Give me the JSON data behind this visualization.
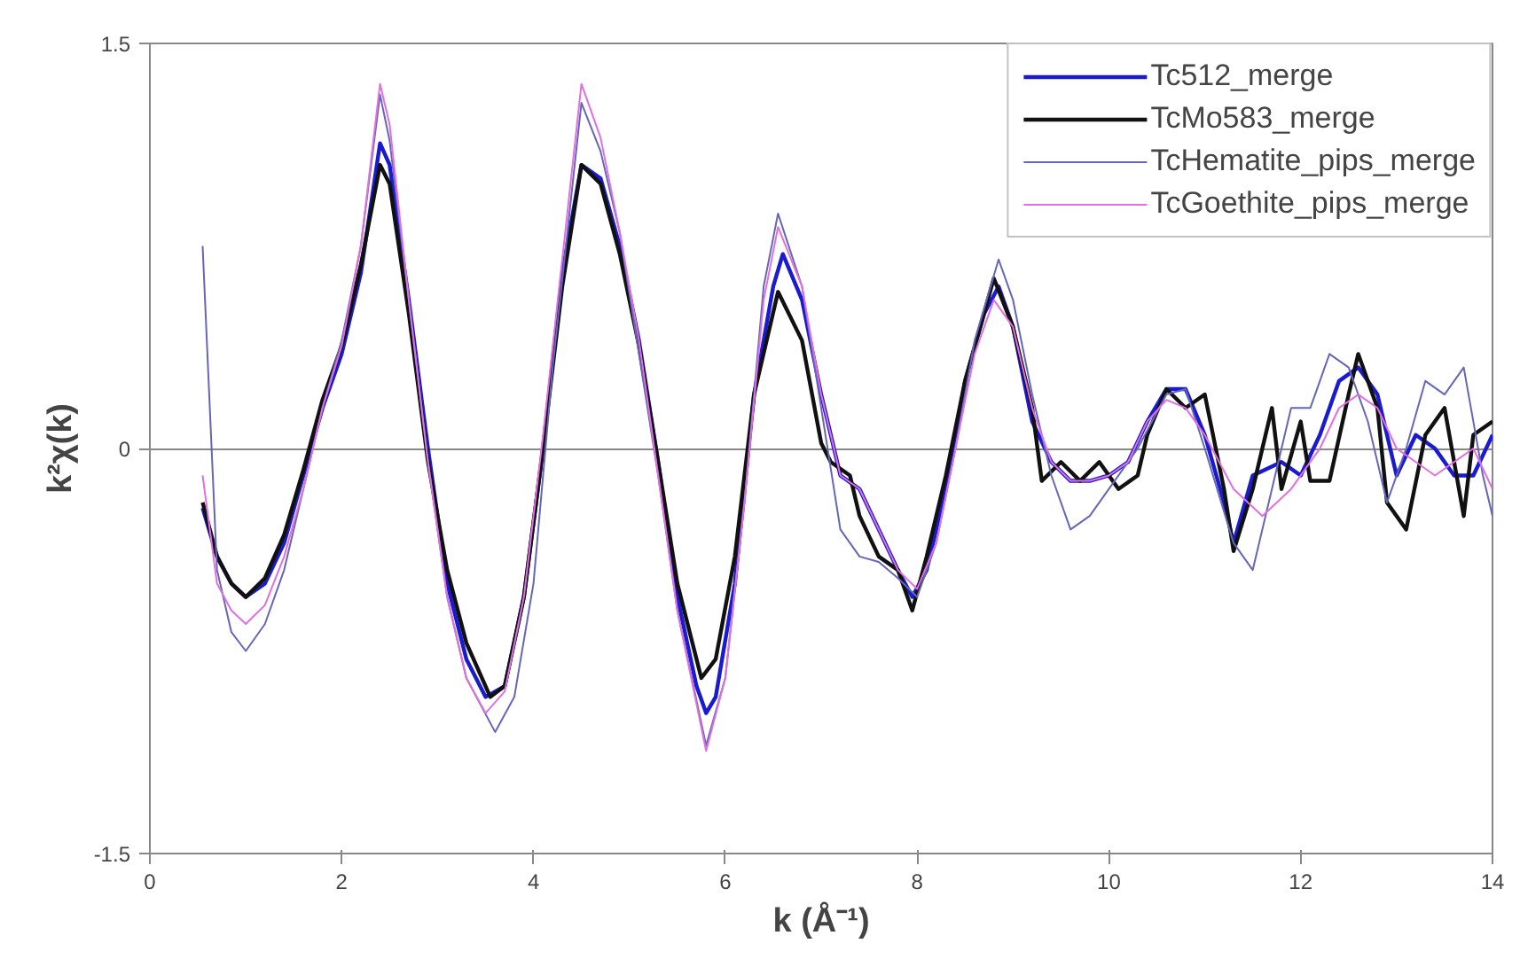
{
  "chart_data": {
    "type": "line",
    "xlabel": "k (Å⁻¹)",
    "ylabel": "k²χ(k)",
    "xlim": [
      0,
      14
    ],
    "ylim": [
      -1.5,
      1.5
    ],
    "xticks": [
      0,
      2,
      4,
      6,
      8,
      10,
      12,
      14
    ],
    "yticks": [
      -1.5,
      0,
      1.5
    ],
    "grid": "y",
    "legend": "top right",
    "line_style": "solid",
    "series": [
      {
        "name": "Tc512_merge",
        "color": "#1a1ad0",
        "x": [
          0.55,
          0.7,
          0.85,
          1.0,
          1.2,
          1.4,
          1.6,
          1.8,
          2.0,
          2.2,
          2.4,
          2.5,
          2.7,
          2.9,
          3.1,
          3.3,
          3.5,
          3.7,
          3.9,
          4.1,
          4.3,
          4.5,
          4.7,
          4.9,
          5.1,
          5.3,
          5.5,
          5.7,
          5.8,
          5.9,
          6.1,
          6.3,
          6.5,
          6.6,
          6.8,
          7.0,
          7.2,
          7.4,
          7.6,
          7.8,
          7.95,
          8.1,
          8.3,
          8.5,
          8.7,
          8.85,
          9.0,
          9.2,
          9.4,
          9.6,
          9.8,
          10.0,
          10.2,
          10.4,
          10.6,
          10.8,
          11.0,
          11.2,
          11.3,
          11.5,
          11.8,
          12.0,
          12.2,
          12.4,
          12.6,
          12.8,
          13.0,
          13.2,
          13.4,
          13.6,
          13.8,
          14.0
        ],
        "values": [
          -0.22,
          -0.4,
          -0.5,
          -0.55,
          -0.5,
          -0.35,
          -0.1,
          0.15,
          0.35,
          0.65,
          1.13,
          1.05,
          0.55,
          0.0,
          -0.5,
          -0.78,
          -0.92,
          -0.88,
          -0.55,
          0.0,
          0.65,
          1.05,
          1.0,
          0.75,
          0.4,
          -0.05,
          -0.55,
          -0.88,
          -0.98,
          -0.92,
          -0.5,
          0.2,
          0.6,
          0.72,
          0.55,
          0.2,
          -0.1,
          -0.15,
          -0.3,
          -0.45,
          -0.55,
          -0.45,
          -0.15,
          0.25,
          0.5,
          0.6,
          0.45,
          0.1,
          -0.05,
          -0.12,
          -0.12,
          -0.1,
          -0.05,
          0.1,
          0.22,
          0.22,
          0.05,
          -0.2,
          -0.35,
          -0.1,
          -0.05,
          -0.1,
          0.05,
          0.25,
          0.3,
          0.2,
          -0.1,
          0.05,
          0.0,
          -0.1,
          -0.1,
          0.05
        ]
      },
      {
        "name": "TcMo583_merge",
        "color": "#111111",
        "x": [
          0.55,
          0.7,
          0.85,
          1.0,
          1.2,
          1.4,
          1.6,
          1.8,
          2.0,
          2.2,
          2.4,
          2.5,
          2.7,
          2.9,
          3.1,
          3.3,
          3.55,
          3.7,
          3.9,
          4.1,
          4.3,
          4.5,
          4.7,
          4.9,
          5.1,
          5.3,
          5.5,
          5.75,
          5.9,
          6.1,
          6.3,
          6.55,
          6.8,
          7.0,
          7.1,
          7.3,
          7.4,
          7.6,
          7.8,
          7.95,
          8.1,
          8.3,
          8.5,
          8.8,
          9.0,
          9.2,
          9.3,
          9.5,
          9.7,
          9.9,
          10.1,
          10.3,
          10.4,
          10.6,
          10.8,
          11.0,
          11.2,
          11.3,
          11.5,
          11.7,
          11.8,
          12.0,
          12.1,
          12.3,
          12.5,
          12.6,
          12.8,
          12.9,
          13.1,
          13.3,
          13.5,
          13.7,
          13.8,
          14.0
        ],
        "values": [
          -0.2,
          -0.4,
          -0.5,
          -0.55,
          -0.48,
          -0.32,
          -0.08,
          0.18,
          0.38,
          0.68,
          1.05,
          0.98,
          0.5,
          -0.05,
          -0.45,
          -0.72,
          -0.92,
          -0.88,
          -0.55,
          0.0,
          0.6,
          1.05,
          0.98,
          0.72,
          0.38,
          -0.05,
          -0.5,
          -0.85,
          -0.78,
          -0.4,
          0.2,
          0.58,
          0.4,
          0.02,
          -0.05,
          -0.1,
          -0.25,
          -0.4,
          -0.45,
          -0.6,
          -0.4,
          -0.1,
          0.25,
          0.63,
          0.45,
          0.15,
          -0.12,
          -0.05,
          -0.12,
          -0.05,
          -0.15,
          -0.1,
          0.05,
          0.22,
          0.15,
          0.2,
          -0.15,
          -0.38,
          -0.15,
          0.15,
          -0.15,
          0.1,
          -0.12,
          -0.12,
          0.2,
          0.35,
          0.15,
          -0.2,
          -0.3,
          0.05,
          0.15,
          -0.25,
          0.05,
          0.1
        ]
      },
      {
        "name": "TcHematite_pips_merge",
        "color": "#6666b8",
        "x": [
          0.55,
          0.7,
          0.85,
          1.0,
          1.2,
          1.4,
          1.6,
          1.8,
          2.0,
          2.2,
          2.4,
          2.5,
          2.7,
          2.9,
          3.1,
          3.3,
          3.6,
          3.8,
          4.0,
          4.2,
          4.5,
          4.7,
          4.9,
          5.1,
          5.3,
          5.5,
          5.8,
          6.0,
          6.2,
          6.4,
          6.55,
          6.8,
          7.0,
          7.2,
          7.4,
          7.6,
          7.8,
          8.0,
          8.2,
          8.4,
          8.6,
          8.85,
          9.0,
          9.2,
          9.4,
          9.6,
          9.8,
          10.0,
          10.3,
          10.6,
          10.8,
          11.0,
          11.3,
          11.5,
          11.7,
          11.9,
          12.1,
          12.3,
          12.5,
          12.7,
          12.9,
          13.1,
          13.3,
          13.5,
          13.7,
          13.9,
          14.0
        ],
        "values": [
          0.75,
          -0.45,
          -0.68,
          -0.75,
          -0.65,
          -0.45,
          -0.15,
          0.15,
          0.4,
          0.75,
          1.31,
          1.14,
          0.55,
          -0.05,
          -0.55,
          -0.85,
          -1.05,
          -0.92,
          -0.5,
          0.3,
          1.28,
          1.1,
          0.8,
          0.35,
          -0.1,
          -0.6,
          -1.1,
          -0.85,
          -0.2,
          0.6,
          0.87,
          0.6,
          0.15,
          -0.3,
          -0.4,
          -0.42,
          -0.48,
          -0.55,
          -0.35,
          0.0,
          0.4,
          0.7,
          0.55,
          0.2,
          -0.1,
          -0.3,
          -0.25,
          -0.15,
          0.0,
          0.2,
          0.22,
          0.0,
          -0.35,
          -0.45,
          -0.15,
          0.15,
          0.15,
          0.35,
          0.3,
          0.1,
          -0.2,
          0.0,
          0.25,
          0.2,
          0.3,
          -0.1,
          -0.25
        ]
      },
      {
        "name": "TcGoethite_pips_merge",
        "color": "#e070e0",
        "x": [
          0.55,
          0.7,
          0.85,
          1.0,
          1.2,
          1.4,
          1.6,
          1.8,
          2.0,
          2.2,
          2.4,
          2.5,
          2.7,
          2.9,
          3.1,
          3.3,
          3.5,
          3.7,
          3.9,
          4.1,
          4.3,
          4.5,
          4.7,
          4.9,
          5.1,
          5.3,
          5.5,
          5.8,
          6.0,
          6.2,
          6.4,
          6.55,
          6.8,
          7.0,
          7.2,
          7.4,
          7.6,
          7.8,
          8.0,
          8.2,
          8.4,
          8.6,
          8.8,
          9.0,
          9.2,
          9.4,
          9.6,
          9.8,
          10.0,
          10.2,
          10.4,
          10.6,
          10.8,
          11.0,
          11.3,
          11.6,
          11.9,
          12.2,
          12.4,
          12.6,
          12.8,
          13.0,
          13.2,
          13.4,
          13.6,
          13.8,
          14.0
        ],
        "values": [
          -0.1,
          -0.5,
          -0.6,
          -0.65,
          -0.58,
          -0.4,
          -0.15,
          0.15,
          0.38,
          0.75,
          1.35,
          1.2,
          0.55,
          -0.05,
          -0.55,
          -0.85,
          -0.98,
          -0.9,
          -0.55,
          0.05,
          0.7,
          1.35,
          1.15,
          0.8,
          0.4,
          -0.1,
          -0.6,
          -1.12,
          -0.85,
          -0.2,
          0.55,
          0.82,
          0.6,
          0.2,
          -0.1,
          -0.15,
          -0.3,
          -0.45,
          -0.52,
          -0.35,
          0.0,
          0.35,
          0.55,
          0.45,
          0.15,
          -0.05,
          -0.12,
          -0.12,
          -0.1,
          -0.05,
          0.1,
          0.18,
          0.15,
          0.05,
          -0.15,
          -0.25,
          -0.15,
          0.0,
          0.15,
          0.2,
          0.15,
          0.0,
          -0.05,
          -0.1,
          -0.05,
          0.0,
          -0.15
        ]
      }
    ]
  }
}
